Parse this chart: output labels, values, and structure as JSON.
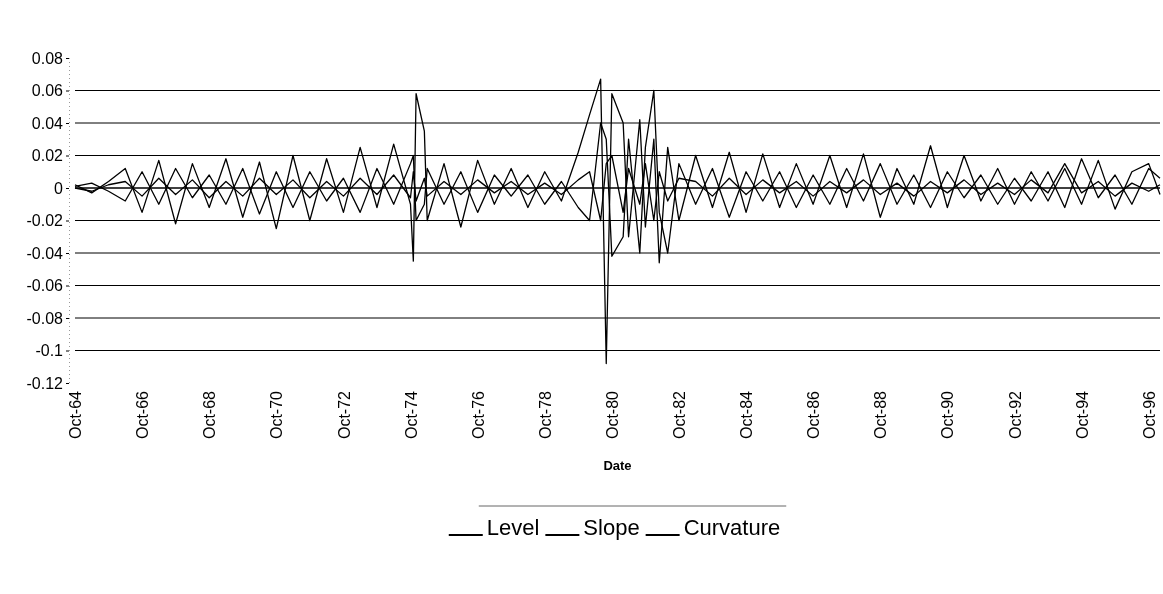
{
  "chart_data": {
    "type": "line",
    "xlabel": "Date",
    "x": [
      "1964-10",
      "1965-04",
      "1965-10",
      "1966-04",
      "1966-10",
      "1967-04",
      "1967-10",
      "1968-04",
      "1968-10",
      "1969-04",
      "1969-10",
      "1970-04",
      "1970-10",
      "1971-04",
      "1971-10",
      "1972-04",
      "1972-10",
      "1973-04",
      "1973-10",
      "1974-04",
      "1974-10",
      "1974-11",
      "1974-12",
      "1975-03",
      "1975-04",
      "1975-10",
      "1976-04",
      "1976-10",
      "1977-04",
      "1977-10",
      "1978-04",
      "1978-10",
      "1979-04",
      "1979-10",
      "1980-02",
      "1980-06",
      "1980-08",
      "1980-10",
      "1981-02",
      "1981-04",
      "1981-08",
      "1981-10",
      "1982-01",
      "1982-03",
      "1982-06",
      "1982-10",
      "1983-04",
      "1983-10",
      "1984-04",
      "1984-10",
      "1985-04",
      "1985-10",
      "1986-04",
      "1986-10",
      "1987-04",
      "1987-10",
      "1988-04",
      "1988-10",
      "1989-04",
      "1989-10",
      "1990-04",
      "1990-10",
      "1991-04",
      "1991-10",
      "1992-04",
      "1992-10",
      "1993-04",
      "1993-10",
      "1994-04",
      "1994-10",
      "1995-04",
      "1995-10",
      "1996-04",
      "1996-10",
      "1997-02"
    ],
    "series": [
      {
        "name": "Level",
        "color": "#000000",
        "values": [
          0.002,
          -0.003,
          0.004,
          0.012,
          -0.015,
          0.017,
          -0.022,
          0.015,
          -0.012,
          0.018,
          -0.018,
          0.016,
          -0.025,
          0.02,
          -0.02,
          0.018,
          -0.015,
          0.025,
          -0.012,
          0.027,
          -0.01,
          -0.045,
          0.058,
          0.035,
          -0.02,
          0.015,
          -0.024,
          0.017,
          -0.01,
          0.012,
          -0.012,
          0.01,
          -0.008,
          0.022,
          0.045,
          0.067,
          -0.108,
          0.058,
          0.04,
          -0.03,
          0.042,
          -0.024,
          0.03,
          -0.046,
          0.025,
          -0.02,
          0.02,
          -0.012,
          0.022,
          -0.015,
          0.021,
          -0.012,
          0.015,
          -0.01,
          0.02,
          -0.012,
          0.021,
          -0.018,
          0.012,
          -0.01,
          0.026,
          -0.012,
          0.02,
          -0.008,
          0.012,
          -0.01,
          0.01,
          -0.008,
          0.012,
          -0.01,
          0.017,
          -0.013,
          0.01,
          0.015,
          -0.004
        ]
      },
      {
        "name": "Slope",
        "color": "#000000",
        "values": [
          0.001,
          0.003,
          -0.002,
          -0.008,
          0.01,
          -0.01,
          0.012,
          -0.006,
          0.008,
          -0.01,
          0.012,
          -0.016,
          0.01,
          -0.012,
          0.01,
          -0.008,
          0.006,
          -0.015,
          0.012,
          -0.01,
          0.015,
          0.02,
          -0.02,
          -0.01,
          0.012,
          -0.01,
          0.01,
          -0.015,
          0.008,
          -0.005,
          0.008,
          -0.01,
          0.004,
          -0.012,
          -0.02,
          0.04,
          0.03,
          -0.042,
          -0.03,
          0.03,
          -0.04,
          0.025,
          0.06,
          -0.015,
          -0.04,
          0.015,
          -0.01,
          0.012,
          -0.018,
          0.01,
          -0.008,
          0.01,
          -0.012,
          0.008,
          -0.01,
          0.012,
          -0.008,
          0.015,
          -0.01,
          0.008,
          -0.012,
          0.01,
          -0.006,
          0.008,
          -0.01,
          0.006,
          -0.008,
          0.01,
          -0.012,
          0.018,
          -0.006,
          0.008,
          -0.01,
          0.012,
          0.006
        ]
      },
      {
        "name": "Curvature",
        "color": "#000000",
        "values": [
          0,
          -0.002,
          0.002,
          0.004,
          -0.005,
          0.006,
          -0.004,
          0.005,
          -0.006,
          0.004,
          -0.005,
          0.006,
          -0.004,
          0.005,
          -0.006,
          0.004,
          -0.005,
          0.006,
          -0.004,
          0.008,
          -0.006,
          0.01,
          -0.008,
          0.006,
          -0.005,
          0.004,
          -0.004,
          0.005,
          -0.003,
          0.004,
          -0.004,
          0.003,
          -0.004,
          0.005,
          0.01,
          -0.02,
          0.015,
          0.02,
          -0.015,
          0.012,
          -0.01,
          0.015,
          -0.02,
          0.01,
          -0.008,
          0.006,
          0.004,
          -0.005,
          0.006,
          -0.004,
          0.005,
          -0.003,
          0.004,
          -0.005,
          0.004,
          -0.003,
          0.005,
          -0.004,
          0.003,
          -0.005,
          0.004,
          -0.003,
          0.005,
          -0.004,
          0.003,
          -0.004,
          0.005,
          -0.003,
          0.015,
          -0.003,
          0.004,
          -0.005,
          0.003,
          -0.002,
          0.002
        ]
      }
    ],
    "xlim": [
      "1964-10",
      "1997-02"
    ],
    "xticks": [
      {
        "value": "1964-10",
        "label": "Oct-64"
      },
      {
        "value": "1966-10",
        "label": "Oct-66"
      },
      {
        "value": "1968-10",
        "label": "Oct-68"
      },
      {
        "value": "1970-10",
        "label": "Oct-70"
      },
      {
        "value": "1972-10",
        "label": "Oct-72"
      },
      {
        "value": "1974-10",
        "label": "Oct-74"
      },
      {
        "value": "1976-10",
        "label": "Oct-76"
      },
      {
        "value": "1978-10",
        "label": "Oct-78"
      },
      {
        "value": "1980-10",
        "label": "Oct-80"
      },
      {
        "value": "1982-10",
        "label": "Oct-82"
      },
      {
        "value": "1984-10",
        "label": "Oct-84"
      },
      {
        "value": "1986-10",
        "label": "Oct-86"
      },
      {
        "value": "1988-10",
        "label": "Oct-88"
      },
      {
        "value": "1990-10",
        "label": "Oct-90"
      },
      {
        "value": "1992-10",
        "label": "Oct-92"
      },
      {
        "value": "1994-10",
        "label": "Oct-94"
      },
      {
        "value": "1996-10",
        "label": "Oct-96"
      }
    ],
    "ylim": [
      -0.12,
      0.08
    ],
    "yticks": [
      0.08,
      0.06,
      0.04,
      0.02,
      0,
      -0.02,
      -0.04,
      -0.06,
      -0.08,
      -0.1,
      -0.12
    ],
    "grid": "y",
    "legend": "bottom",
    "marker": "none",
    "line_style": "solid"
  }
}
